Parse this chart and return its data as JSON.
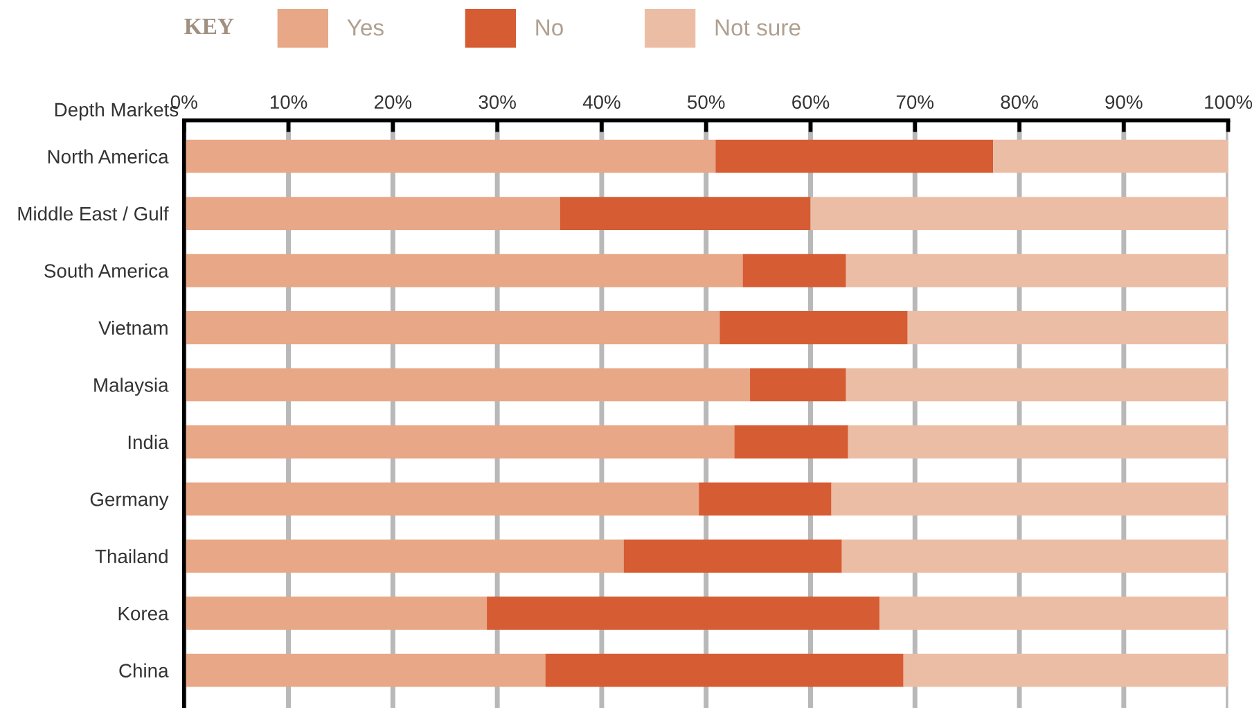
{
  "chart_data": {
    "type": "bar",
    "orientation": "horizontal",
    "stacked": true,
    "legend_title": "KEY",
    "ylabel": "Depth Markets",
    "categories": [
      "North America",
      "Middle East / Gulf",
      "South America",
      "Vietnam",
      "Malaysia",
      "India",
      "Germany",
      "Thailand",
      "Korea",
      "China"
    ],
    "series": [
      {
        "name": "Yes",
        "color": "#e8a786",
        "values": [
          50.9,
          36.0,
          53.5,
          51.3,
          54.2,
          52.7,
          49.3,
          42.1,
          29.0,
          34.6
        ]
      },
      {
        "name": "No",
        "color": "#d65c33",
        "values": [
          26.6,
          24.0,
          9.9,
          18.0,
          9.2,
          10.9,
          12.7,
          20.9,
          37.6,
          34.3
        ]
      },
      {
        "name": "Not sure",
        "color": "#ecbda5",
        "values": [
          22.5,
          40.0,
          36.6,
          30.7,
          36.6,
          36.4,
          38.0,
          37.0,
          33.4,
          31.1
        ]
      }
    ],
    "xlim": [
      0,
      100
    ],
    "xticks": [
      {
        "value": 0,
        "label": "0%"
      },
      {
        "value": 10,
        "label": "10%"
      },
      {
        "value": 20,
        "label": "20%"
      },
      {
        "value": 30,
        "label": "30%"
      },
      {
        "value": 40,
        "label": "40%"
      },
      {
        "value": 50,
        "label": "50%"
      },
      {
        "value": 60,
        "label": "60%"
      },
      {
        "value": 70,
        "label": "70%"
      },
      {
        "value": 80,
        "label": "80%"
      },
      {
        "value": 90,
        "label": "90%"
      },
      {
        "value": 100,
        "label": "100%"
      }
    ],
    "grid": "x",
    "legend": "top"
  }
}
